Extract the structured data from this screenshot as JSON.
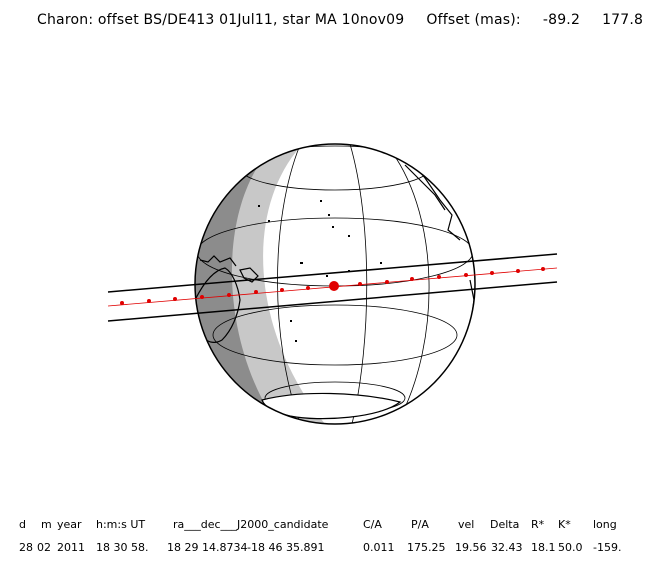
{
  "title": {
    "text": "Charon: offset BS/DE413 01Jul11, star MA 10nov09",
    "offset_label": "Offset (mas):",
    "offset_ra": "-89.2",
    "offset_dec": "177.8"
  },
  "table": {
    "headers": [
      "d",
      "m",
      "year",
      "h:m:s UT",
      "ra___dec___J2000_candidate",
      "C/A",
      "P/A",
      "vel",
      "Delta",
      "R*",
      "K*",
      "long"
    ],
    "values": [
      "28",
      "02",
      "2011",
      "18 30 58.",
      "18 29 14.8734",
      "-18 46  35.891",
      "0.011",
      "175.25",
      "19.56",
      "32.43",
      "18.1",
      "50.0",
      "-159."
    ]
  },
  "colors": {
    "night": "#8c8c8c",
    "twilight": "#c8c8c8",
    "chord": "#e00000",
    "ink": "#000000"
  }
}
